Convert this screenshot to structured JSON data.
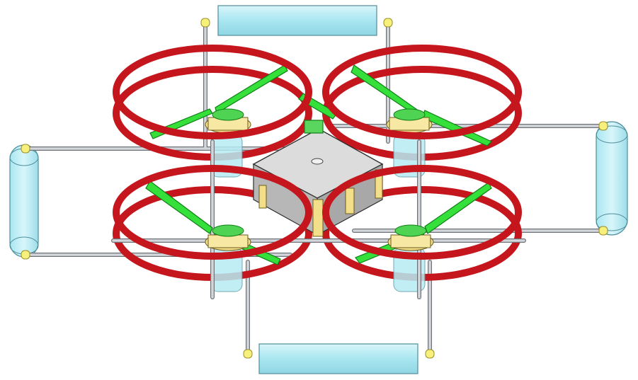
{
  "diagram": {
    "subject": "quadcopter",
    "rotor_count": 4,
    "float_count": 4,
    "colors": {
      "background": "#ffffff",
      "rotor_guard": "#c4161c",
      "rotor_guard_dark": "#8f0d12",
      "propeller": "#35e03a",
      "propeller_dark": "#1c9f22",
      "motor_mount": "#f3df8a",
      "motor_mount_dark": "#b89b3a",
      "frame_rod": "#c9ccd0",
      "frame_rod_edge": "#6d7278",
      "float_fill": "#b7ecf4",
      "float_edge": "#5b9aa6",
      "center_body": "#d9d9d9",
      "center_body_edge": "#3a3a3a",
      "connector": "#f7f07a"
    }
  }
}
